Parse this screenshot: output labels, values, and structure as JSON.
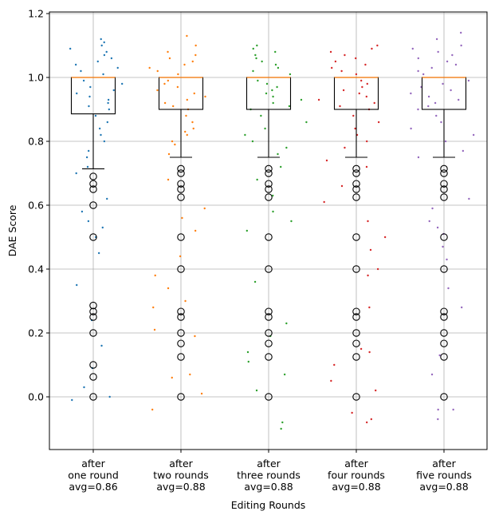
{
  "chart_data": {
    "type": "box-strip",
    "xlabel": "Editing Rounds",
    "ylabel": "DAE Score",
    "ylim": [
      -0.165,
      1.205
    ],
    "yticks": [
      0.0,
      0.2,
      0.4,
      0.6,
      0.8,
      1.0,
      1.2
    ],
    "ytick_labels": [
      "0.0",
      "0.2",
      "0.4",
      "0.6",
      "0.8",
      "1.0",
      "1.2"
    ],
    "grid": true,
    "categories": [
      [
        "after",
        "one round",
        "avg=0.86"
      ],
      [
        "after",
        "two rounds",
        "avg=0.88"
      ],
      [
        "after",
        "three rounds",
        "avg=0.88"
      ],
      [
        "after",
        "four rounds",
        "avg=0.88"
      ],
      [
        "after",
        "five rounds",
        "avg=0.88"
      ]
    ],
    "series": [
      {
        "name": "after one round",
        "color": "#1f77b4",
        "avg": 0.86,
        "box": {
          "whisker_low": 0.714,
          "q1": 0.886,
          "median": 1.0,
          "q3": 1.0,
          "whisker_high": 1.0
        },
        "outliers": [
          0.69,
          0.667,
          0.65,
          0.6,
          0.5,
          0.286,
          0.267,
          0.25,
          0.2,
          0.1,
          0.0625,
          0.0
        ],
        "points": [
          1.12,
          1.11,
          1.1,
          1.09,
          1.08,
          1.07,
          1.06,
          1.05,
          1.04,
          1.03,
          1.02,
          1.01,
          0.99,
          0.98,
          0.97,
          0.96,
          0.95,
          0.94,
          0.93,
          0.92,
          0.91,
          0.9,
          0.88,
          0.86,
          0.84,
          0.82,
          0.8,
          0.77,
          0.75,
          0.72,
          0.7,
          0.62,
          0.58,
          0.55,
          0.53,
          0.5,
          0.45,
          0.35,
          0.24,
          0.16,
          0.09,
          0.03,
          0.0,
          -0.01
        ]
      },
      {
        "name": "after two rounds",
        "color": "#ff7f0e",
        "avg": 0.88,
        "box": {
          "whisker_low": 0.75,
          "q1": 0.9,
          "median": 1.0,
          "q3": 1.0,
          "whisker_high": 1.0
        },
        "outliers": [
          0.714,
          0.7,
          0.667,
          0.65,
          0.625,
          0.5,
          0.4,
          0.267,
          0.25,
          0.2,
          0.167,
          0.125,
          0.0
        ],
        "points": [
          1.13,
          1.1,
          1.08,
          1.07,
          1.06,
          1.05,
          1.04,
          1.03,
          1.02,
          1.01,
          0.99,
          0.98,
          0.97,
          0.96,
          0.95,
          0.94,
          0.93,
          0.92,
          0.91,
          0.9,
          0.88,
          0.86,
          0.84,
          0.83,
          0.82,
          0.8,
          0.79,
          0.76,
          0.68,
          0.59,
          0.56,
          0.52,
          0.44,
          0.38,
          0.34,
          0.3,
          0.28,
          0.21,
          0.19,
          0.07,
          0.06,
          0.01,
          -0.04
        ]
      },
      {
        "name": "after three rounds",
        "color": "#2ca02c",
        "avg": 0.88,
        "box": {
          "whisker_low": 0.75,
          "q1": 0.9,
          "median": 1.0,
          "q3": 1.0,
          "whisker_high": 1.0
        },
        "outliers": [
          0.714,
          0.7,
          0.667,
          0.65,
          0.625,
          0.5,
          0.4,
          0.267,
          0.25,
          0.2,
          0.167,
          0.125,
          0.0
        ],
        "points": [
          1.1,
          1.09,
          1.08,
          1.07,
          1.06,
          1.05,
          1.04,
          1.03,
          1.02,
          1.01,
          0.99,
          0.98,
          0.97,
          0.96,
          0.95,
          0.94,
          0.93,
          0.92,
          0.91,
          0.9,
          0.88,
          0.86,
          0.84,
          0.82,
          0.8,
          0.78,
          0.76,
          0.72,
          0.68,
          0.63,
          0.58,
          0.55,
          0.52,
          0.36,
          0.23,
          0.19,
          0.14,
          0.11,
          0.07,
          0.02,
          -0.08,
          -0.1
        ]
      },
      {
        "name": "after four rounds",
        "color": "#d62728",
        "avg": 0.88,
        "box": {
          "whisker_low": 0.75,
          "q1": 0.9,
          "median": 1.0,
          "q3": 1.0,
          "whisker_high": 1.0
        },
        "outliers": [
          0.714,
          0.7,
          0.667,
          0.65,
          0.625,
          0.5,
          0.4,
          0.267,
          0.25,
          0.2,
          0.167,
          0.125,
          0.0
        ],
        "points": [
          1.1,
          1.09,
          1.08,
          1.07,
          1.06,
          1.05,
          1.04,
          1.03,
          1.02,
          1.01,
          0.99,
          0.98,
          0.97,
          0.96,
          0.95,
          0.94,
          0.93,
          0.92,
          0.91,
          0.9,
          0.88,
          0.86,
          0.84,
          0.82,
          0.8,
          0.78,
          0.74,
          0.72,
          0.66,
          0.61,
          0.55,
          0.5,
          0.46,
          0.4,
          0.38,
          0.28,
          0.15,
          0.14,
          0.1,
          0.05,
          0.02,
          -0.05,
          -0.07,
          -0.08
        ]
      },
      {
        "name": "after five rounds",
        "color": "#9467bd",
        "avg": 0.88,
        "box": {
          "whisker_low": 0.75,
          "q1": 0.9,
          "median": 1.0,
          "q3": 1.0,
          "whisker_high": 1.0
        },
        "outliers": [
          0.714,
          0.7,
          0.667,
          0.65,
          0.625,
          0.5,
          0.4,
          0.267,
          0.25,
          0.2,
          0.167,
          0.125,
          0.0
        ],
        "points": [
          1.14,
          1.12,
          1.1,
          1.09,
          1.08,
          1.07,
          1.06,
          1.05,
          1.04,
          1.03,
          1.02,
          1.01,
          0.99,
          0.98,
          0.97,
          0.96,
          0.95,
          0.94,
          0.93,
          0.92,
          0.91,
          0.9,
          0.88,
          0.86,
          0.84,
          0.82,
          0.8,
          0.77,
          0.75,
          0.62,
          0.59,
          0.55,
          0.53,
          0.51,
          0.47,
          0.43,
          0.34,
          0.28,
          0.13,
          0.07,
          -0.04,
          -0.04,
          -0.07
        ]
      }
    ]
  }
}
